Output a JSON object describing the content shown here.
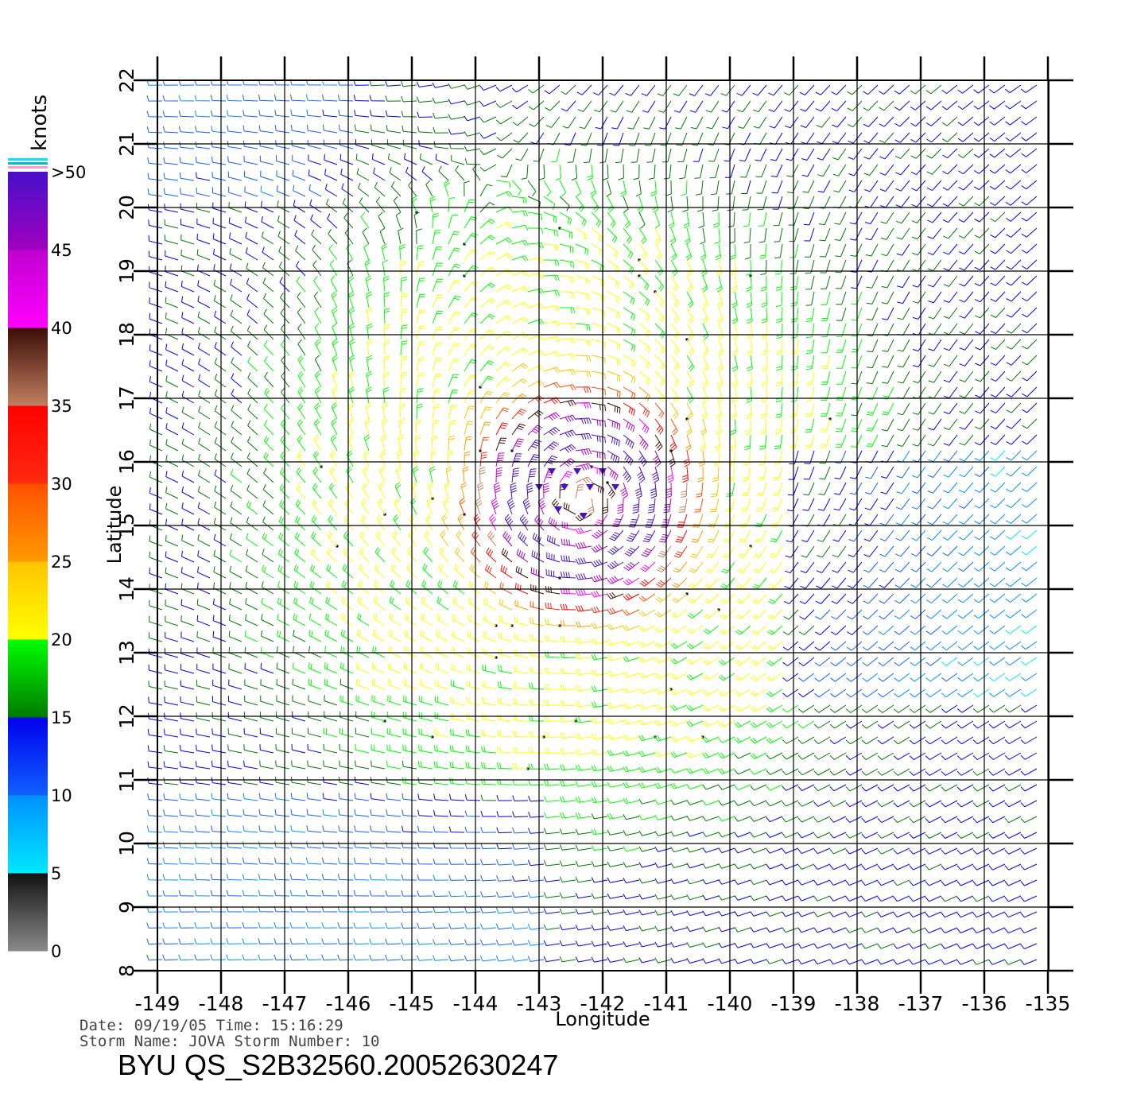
{
  "map": {
    "lon_ticks": [
      "-149",
      "-148",
      "-147",
      "-146",
      "-145",
      "-144",
      "-143",
      "-142",
      "-141",
      "-140",
      "-139",
      "-138",
      "-137",
      "-136",
      "-135"
    ],
    "lat_ticks": [
      "8",
      "9",
      "10",
      "11",
      "12",
      "13",
      "14",
      "15",
      "16",
      "17",
      "18",
      "19",
      "20",
      "21",
      "22"
    ],
    "xlabel": "Longitude",
    "ylabel": "Latitude",
    "lon_range": [
      -149,
      -134.6
    ],
    "lat_range": [
      8,
      22
    ],
    "storm_center": {
      "lon": -142.3,
      "lat": 15.4
    },
    "grid": true
  },
  "colorbar": {
    "title": "knots",
    "labels": [
      ">50",
      "45",
      "40",
      "35",
      "30",
      "25",
      "20",
      "15",
      "10",
      "5",
      "0"
    ],
    "stops": [
      {
        "min": 0,
        "max": 5,
        "from": "#8a8a8a",
        "to": "#111111"
      },
      {
        "min": 5,
        "max": 10,
        "from": "#00e8ff",
        "to": "#0090ff"
      },
      {
        "min": 10,
        "max": 15,
        "from": "#1060ff",
        "to": "#0000ee"
      },
      {
        "min": 15,
        "max": 20,
        "from": "#007a00",
        "to": "#00ff00"
      },
      {
        "min": 20,
        "max": 25,
        "from": "#ffff00",
        "to": "#ffc400"
      },
      {
        "min": 25,
        "max": 30,
        "from": "#ff9a00",
        "to": "#ff5000"
      },
      {
        "min": 30,
        "max": 35,
        "from": "#ff2a10",
        "to": "#ff0000"
      },
      {
        "min": 35,
        "max": 40,
        "from": "#c08060",
        "to": "#3c0c06"
      },
      {
        "min": 40,
        "max": 45,
        "from": "#ff00ff",
        "to": "#c000d0"
      },
      {
        "min": 45,
        "max": 50,
        "from": "#a000c0",
        "to": "#4810c8"
      }
    ]
  },
  "info": {
    "date_line": "Date: 09/19/05   Time: 15:16:29",
    "storm_line": "Storm Name: JOVA   Storm Number: 10",
    "product": "BYU QS_S2B32560.20052630247"
  }
}
